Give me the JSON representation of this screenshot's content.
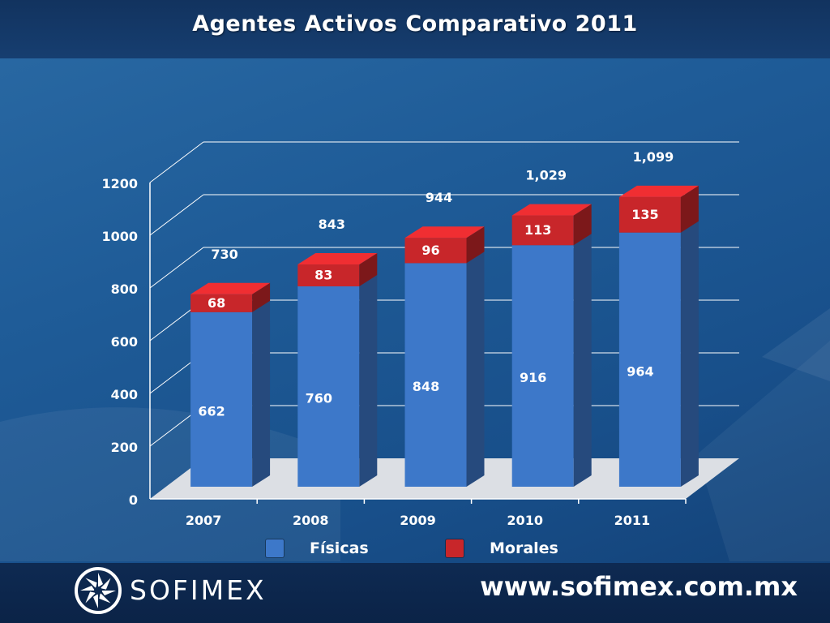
{
  "title": "Agentes Activos Comparativo 2011",
  "logo": {
    "text": "SOFIMEX"
  },
  "website": "www.sofimex.com.mx",
  "colors": {
    "fisicas": "#3d78c9",
    "morales": "#c8262a",
    "label": "#ffffff"
  },
  "chart_data": {
    "type": "bar",
    "stacked": true,
    "categories": [
      "2007",
      "2008",
      "2009",
      "2010",
      "2011"
    ],
    "series": [
      {
        "name": "Físicas",
        "values": [
          662,
          760,
          848,
          916,
          964
        ]
      },
      {
        "name": "Morales",
        "values": [
          68,
          83,
          96,
          113,
          135
        ]
      }
    ],
    "totals": [
      "730",
      "843",
      "944",
      "1,029",
      "1,099"
    ],
    "ylim": [
      0,
      1200
    ],
    "yticks": [
      0,
      200,
      400,
      600,
      800,
      1000,
      1200
    ],
    "grid": true,
    "legend_position": "bottom"
  }
}
